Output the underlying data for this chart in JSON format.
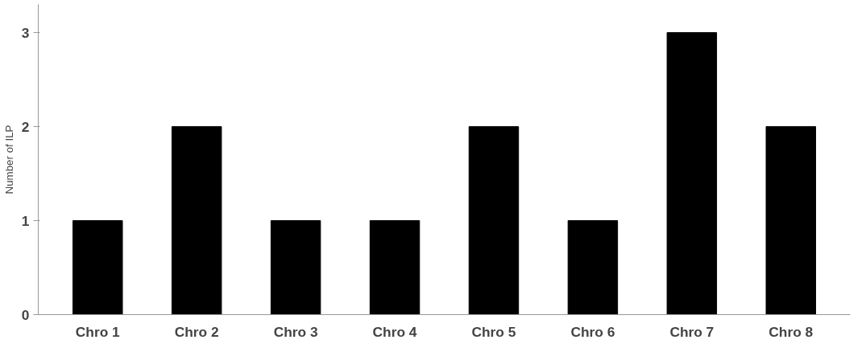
{
  "chart_data": {
    "type": "bar",
    "ylabel": "Number of ILP",
    "categories": [
      "Chro 1",
      "Chro 2",
      "Chro 3",
      "Chro 4",
      "Chro 5",
      "Chro 6",
      "Chro 7",
      "Chro 8"
    ],
    "values": [
      1,
      2,
      1,
      1,
      2,
      1,
      3,
      2
    ],
    "color": "#000000",
    "ylim": [
      0,
      3.3
    ],
    "yticks": [
      0,
      1,
      2,
      3
    ],
    "grid": false,
    "legend": false
  }
}
